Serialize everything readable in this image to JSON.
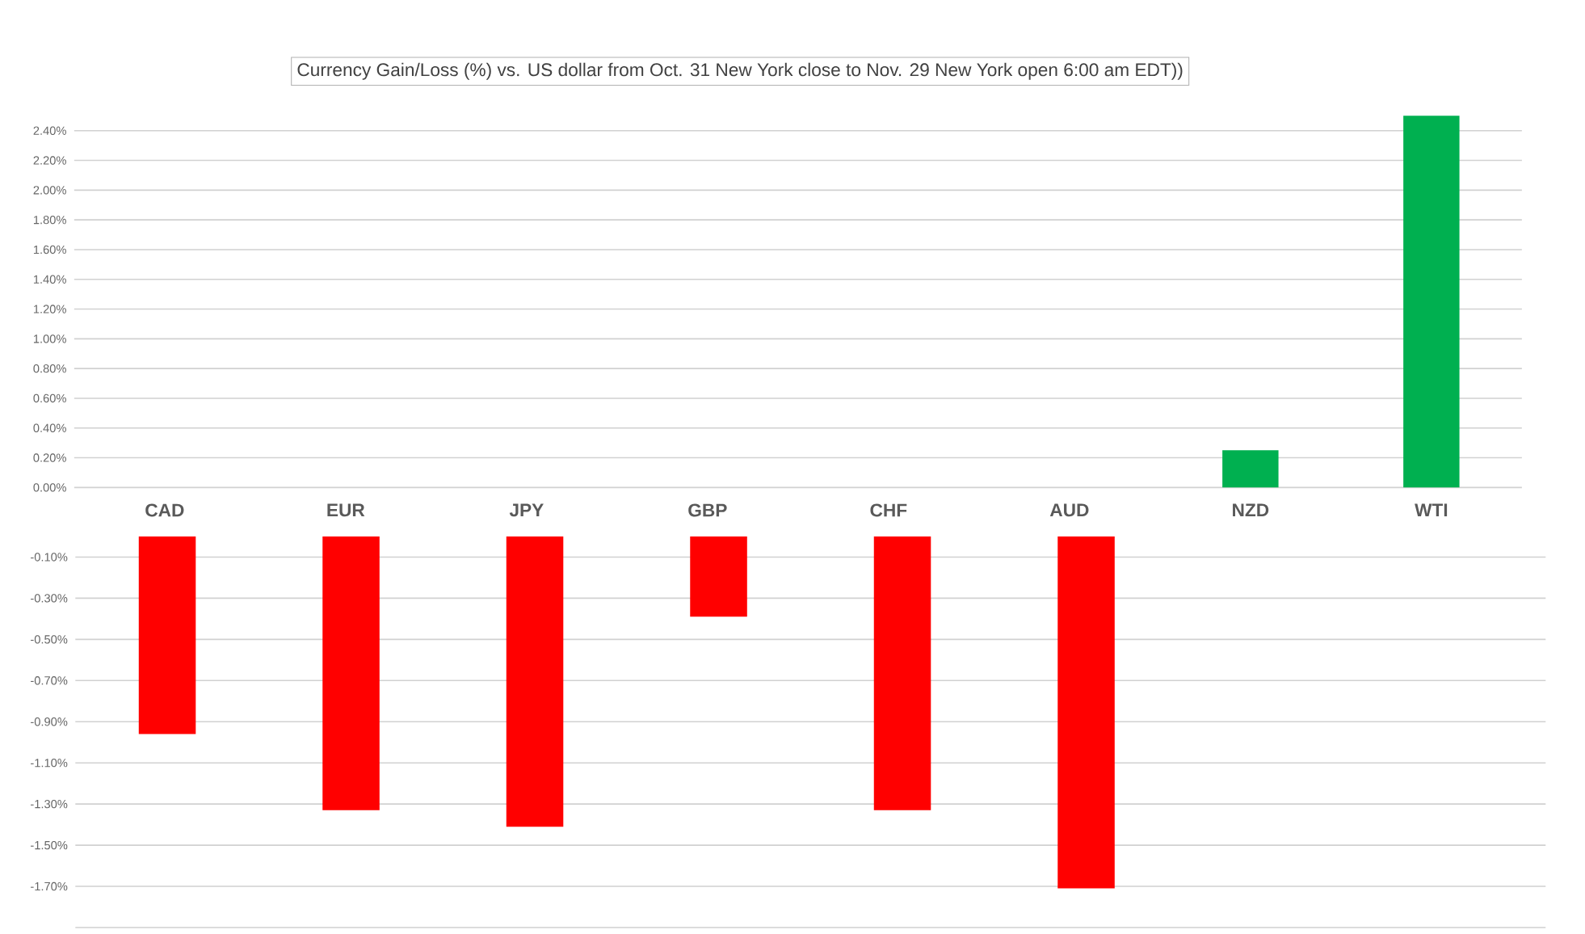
{
  "chart_data": [
    {
      "type": "bar",
      "title": "Currency  Gain/Loss (%) vs. US dollar  from Oct. 31 New York  close to  Nov. 29 New York open 6:00 am EDT))",
      "categories": [
        "CAD",
        "EUR",
        "JPY",
        "GBP",
        "CHF",
        "AUD",
        "NZD",
        "WTI"
      ],
      "values": [
        null,
        null,
        null,
        null,
        null,
        null,
        0.25,
        2.5
      ],
      "color": "#00b050",
      "ylim": [
        0,
        2.5
      ],
      "yticks": [
        {
          "value": 0,
          "label": "0.00%"
        },
        {
          "value": 0.2,
          "label": "0.20%"
        },
        {
          "value": 0.4,
          "label": "0.40%"
        },
        {
          "value": 0.6,
          "label": "0.60%"
        },
        {
          "value": 0.8,
          "label": "0.80%"
        },
        {
          "value": 1.0,
          "label": "1.00%"
        },
        {
          "value": 1.2,
          "label": "1.20%"
        },
        {
          "value": 1.4,
          "label": "1.40%"
        },
        {
          "value": 1.6,
          "label": "1.60%"
        },
        {
          "value": 1.8,
          "label": "1.80%"
        },
        {
          "value": 2.0,
          "label": "2.00%"
        },
        {
          "value": 2.2,
          "label": "2.20%"
        },
        {
          "value": 2.4,
          "label": "2.40%"
        }
      ],
      "grid": "y"
    },
    {
      "type": "bar",
      "categories": [
        null,
        null,
        null,
        null,
        null,
        null,
        null,
        null
      ],
      "values": [
        -0.96,
        -1.33,
        -1.41,
        -0.39,
        -1.33,
        -1.71,
        null,
        null
      ],
      "color": "#ff0000",
      "ylim": [
        -1.9,
        0
      ],
      "yticks": [
        {
          "value": -0.1,
          "label": "-0.10%"
        },
        {
          "value": -0.3,
          "label": "-0.30%"
        },
        {
          "value": -0.5,
          "label": "-0.50%"
        },
        {
          "value": -0.7,
          "label": "-0.70%"
        },
        {
          "value": -0.9,
          "label": "-0.90%"
        },
        {
          "value": -1.1,
          "label": "-1.10%"
        },
        {
          "value": -1.3,
          "label": "-1.30%"
        },
        {
          "value": -1.5,
          "label": "-1.50%"
        },
        {
          "value": -1.7,
          "label": "-1.70%"
        },
        {
          "value": -1.9,
          "label": null
        }
      ],
      "grid": "y",
      "tick_labels": "y"
    }
  ]
}
